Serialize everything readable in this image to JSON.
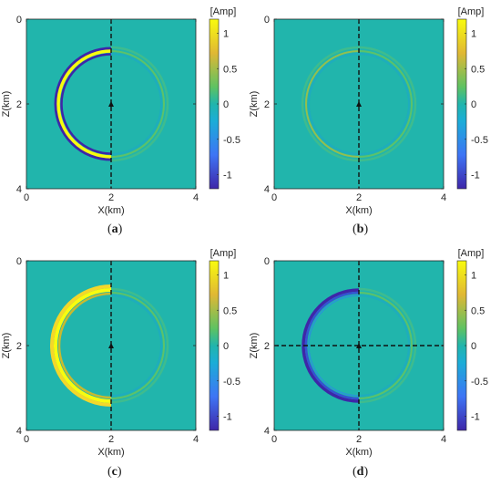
{
  "figure": {
    "colorbar_unit": "[Amp]",
    "colorbar_ticks": [
      "1",
      "0.5",
      "0",
      "-0.5",
      "-1"
    ],
    "x_ticks": [
      "0",
      "2",
      "4"
    ],
    "z_ticks": [
      "0",
      "2",
      "4"
    ],
    "x_label": "X(km)",
    "z_label": "Z(km)",
    "background_color": "#21B5AC",
    "colormap": "parula",
    "panels": [
      {
        "label": "a",
        "left_wave": "strong-blue-yellow",
        "right_wave": "weak",
        "horizontal_line": false
      },
      {
        "label": "b",
        "left_wave": "weak",
        "right_wave": "weak",
        "horizontal_line": false
      },
      {
        "label": "c",
        "left_wave": "strong-yellow",
        "right_wave": "weak",
        "horizontal_line": false
      },
      {
        "label": "d",
        "left_wave": "strong-blue",
        "right_wave": "weak",
        "horizontal_line": true
      }
    ]
  },
  "chart_data": [
    {
      "type": "heatmap",
      "xlabel": "X(km)",
      "ylabel": "Z(km)",
      "xlim": [
        0,
        4
      ],
      "ylim": [
        4,
        0
      ],
      "clim": [
        -1.2,
        1.2
      ],
      "colorbar_label": "[Amp]",
      "colorbar_ticks": [
        1,
        0.5,
        0,
        -0.5,
        -1
      ],
      "caption": "(a)"
    },
    {
      "type": "heatmap",
      "xlabel": "X(km)",
      "ylabel": "Z(km)",
      "xlim": [
        0,
        4
      ],
      "ylim": [
        4,
        0
      ],
      "clim": [
        -1.2,
        1.2
      ],
      "colorbar_label": "[Amp]",
      "colorbar_ticks": [
        1,
        0.5,
        0,
        -0.5,
        -1
      ],
      "caption": "(b)"
    },
    {
      "type": "heatmap",
      "xlabel": "X(km)",
      "ylabel": "Z(km)",
      "xlim": [
        0,
        4
      ],
      "ylim": [
        4,
        0
      ],
      "clim": [
        -1.2,
        1.2
      ],
      "colorbar_label": "[Amp]",
      "colorbar_ticks": [
        1,
        0.5,
        0,
        -0.5,
        -1
      ],
      "caption": "(c)"
    },
    {
      "type": "heatmap",
      "xlabel": "X(km)",
      "ylabel": "Z(km)",
      "xlim": [
        0,
        4
      ],
      "ylim": [
        4,
        0
      ],
      "clim": [
        -1.2,
        1.2
      ],
      "colorbar_label": "[Amp]",
      "colorbar_ticks": [
        1,
        0.5,
        0,
        -0.5,
        -1
      ],
      "caption": "(d)"
    }
  ]
}
